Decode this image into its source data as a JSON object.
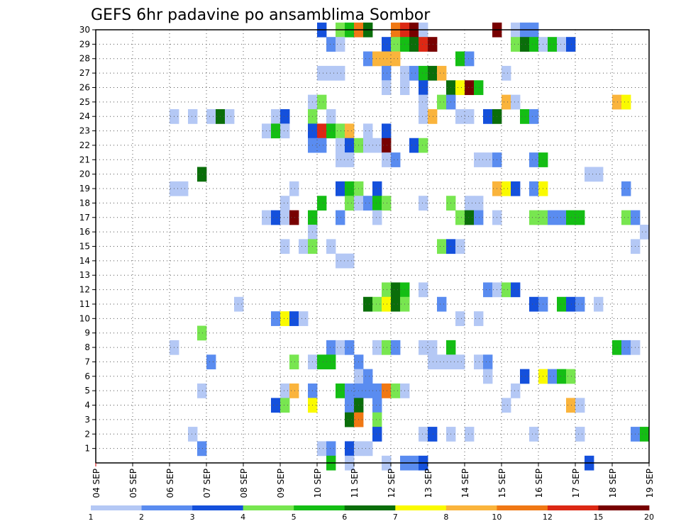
{
  "chart_data": {
    "type": "heatmap",
    "title": "GEFS 6hr padavine po ansamblima Sombor",
    "xlabel": "",
    "ylabel": "",
    "x_ticks": [
      "04 SEP",
      "05 SEP",
      "06 SEP",
      "07 SEP",
      "08 SEP",
      "09 SEP",
      "10 SEP",
      "11 SEP",
      "12 SEP",
      "13 SEP",
      "14 SEP",
      "15 SEP",
      "16 SEP",
      "17 SEP",
      "18 SEP",
      "19 SEP"
    ],
    "y_ticks": [
      "1",
      "2",
      "3",
      "4",
      "5",
      "6",
      "7",
      "8",
      "9",
      "10",
      "11",
      "12",
      "13",
      "14",
      "15",
      "16",
      "17",
      "18",
      "19",
      "20",
      "21",
      "22",
      "23",
      "24",
      "25",
      "26",
      "27",
      "28",
      "29",
      "30"
    ],
    "xlim": [
      0,
      15
    ],
    "ylim": [
      0,
      30
    ],
    "grid": true,
    "colorbar": {
      "levels": [
        "1",
        "2",
        "3",
        "4",
        "5",
        "6",
        "7",
        "8",
        "10",
        "12",
        "15",
        "20"
      ],
      "colors": [
        "#b4c8f5",
        "#5a8cf0",
        "#1450dc",
        "#78e650",
        "#14be14",
        "#0a6e0a",
        "#fafa00",
        "#fab43c",
        "#f07814",
        "#dc2814",
        "#780000"
      ]
    },
    "cells": [
      [
        6.0,
        30,
        2
      ],
      [
        6.5,
        30,
        3
      ],
      [
        6.75,
        30,
        4
      ],
      [
        7.0,
        30,
        8
      ],
      [
        7.25,
        30,
        5
      ],
      [
        8.0,
        30,
        8
      ],
      [
        8.25,
        30,
        9
      ],
      [
        8.5,
        30,
        10
      ],
      [
        8.75,
        30,
        0
      ],
      [
        10.75,
        30,
        10
      ],
      [
        11.25,
        30,
        0
      ],
      [
        11.5,
        30,
        1
      ],
      [
        11.75,
        30,
        1
      ],
      [
        6.25,
        29,
        1
      ],
      [
        6.5,
        29,
        0
      ],
      [
        7.75,
        29,
        2
      ],
      [
        8.0,
        29,
        3
      ],
      [
        8.25,
        29,
        4
      ],
      [
        8.5,
        29,
        5
      ],
      [
        8.75,
        29,
        9
      ],
      [
        9.0,
        29,
        10
      ],
      [
        11.25,
        29,
        3
      ],
      [
        11.5,
        29,
        5
      ],
      [
        11.75,
        29,
        4
      ],
      [
        12.0,
        29,
        0
      ],
      [
        12.25,
        29,
        4
      ],
      [
        12.5,
        29,
        0
      ],
      [
        12.75,
        29,
        2
      ],
      [
        7.25,
        28,
        1
      ],
      [
        7.5,
        28,
        7
      ],
      [
        7.75,
        28,
        7
      ],
      [
        8.0,
        28,
        7
      ],
      [
        9.75,
        28,
        4
      ],
      [
        10.0,
        28,
        1
      ],
      [
        6.0,
        27,
        0
      ],
      [
        6.25,
        27,
        0
      ],
      [
        6.5,
        27,
        0
      ],
      [
        7.75,
        27,
        1
      ],
      [
        8.25,
        27,
        0
      ],
      [
        8.5,
        27,
        1
      ],
      [
        8.75,
        27,
        4
      ],
      [
        9.0,
        27,
        5
      ],
      [
        9.25,
        27,
        7
      ],
      [
        11.0,
        27,
        0
      ],
      [
        7.75,
        26,
        0
      ],
      [
        8.25,
        26,
        0
      ],
      [
        8.75,
        26,
        2
      ],
      [
        9.5,
        26,
        5
      ],
      [
        9.75,
        26,
        6
      ],
      [
        10.0,
        26,
        10
      ],
      [
        10.25,
        26,
        4
      ],
      [
        5.75,
        25,
        0
      ],
      [
        6.0,
        25,
        3
      ],
      [
        8.75,
        25,
        0
      ],
      [
        9.25,
        25,
        3
      ],
      [
        9.5,
        25,
        1
      ],
      [
        11.0,
        25,
        7
      ],
      [
        11.25,
        25,
        0
      ],
      [
        14.0,
        25,
        7
      ],
      [
        14.25,
        25,
        6
      ],
      [
        2.0,
        24,
        0
      ],
      [
        2.5,
        24,
        0
      ],
      [
        3.0,
        24,
        0
      ],
      [
        3.25,
        24,
        5
      ],
      [
        3.5,
        24,
        0
      ],
      [
        4.75,
        24,
        0
      ],
      [
        5.0,
        24,
        2
      ],
      [
        5.75,
        24,
        3
      ],
      [
        6.25,
        24,
        0
      ],
      [
        8.75,
        24,
        0
      ],
      [
        9.0,
        24,
        7
      ],
      [
        9.75,
        24,
        0
      ],
      [
        10.0,
        24,
        0
      ],
      [
        10.5,
        24,
        2
      ],
      [
        10.75,
        24,
        5
      ],
      [
        11.5,
        24,
        4
      ],
      [
        11.75,
        24,
        1
      ],
      [
        4.5,
        23,
        0
      ],
      [
        4.75,
        23,
        4
      ],
      [
        5.0,
        23,
        0
      ],
      [
        5.75,
        23,
        2
      ],
      [
        6.0,
        23,
        9
      ],
      [
        6.25,
        23,
        4
      ],
      [
        6.5,
        23,
        3
      ],
      [
        6.75,
        23,
        7
      ],
      [
        7.25,
        23,
        0
      ],
      [
        7.75,
        23,
        2
      ],
      [
        5.75,
        22,
        1
      ],
      [
        6.0,
        22,
        1
      ],
      [
        6.5,
        22,
        0
      ],
      [
        6.75,
        22,
        2
      ],
      [
        7.0,
        22,
        3
      ],
      [
        7.25,
        22,
        0
      ],
      [
        7.5,
        22,
        0
      ],
      [
        7.75,
        22,
        10
      ],
      [
        8.5,
        22,
        2
      ],
      [
        8.75,
        22,
        3
      ],
      [
        6.5,
        21,
        0
      ],
      [
        6.75,
        21,
        0
      ],
      [
        7.75,
        21,
        0
      ],
      [
        8.0,
        21,
        1
      ],
      [
        10.25,
        21,
        0
      ],
      [
        10.5,
        21,
        0
      ],
      [
        10.75,
        21,
        1
      ],
      [
        11.75,
        21,
        1
      ],
      [
        12.0,
        21,
        4
      ],
      [
        2.75,
        20,
        5
      ],
      [
        13.25,
        20,
        0
      ],
      [
        13.5,
        20,
        0
      ],
      [
        2.0,
        19,
        0
      ],
      [
        2.25,
        19,
        0
      ],
      [
        5.25,
        19,
        0
      ],
      [
        6.5,
        19,
        2
      ],
      [
        6.75,
        19,
        4
      ],
      [
        7.0,
        19,
        3
      ],
      [
        7.5,
        19,
        2
      ],
      [
        10.75,
        19,
        7
      ],
      [
        11.0,
        19,
        6
      ],
      [
        11.25,
        19,
        2
      ],
      [
        11.75,
        19,
        1
      ],
      [
        12.0,
        19,
        6
      ],
      [
        14.25,
        19,
        1
      ],
      [
        5.0,
        18,
        0
      ],
      [
        6.0,
        18,
        4
      ],
      [
        6.75,
        18,
        3
      ],
      [
        7.0,
        18,
        0
      ],
      [
        7.25,
        18,
        1
      ],
      [
        7.5,
        18,
        4
      ],
      [
        7.75,
        18,
        3
      ],
      [
        8.75,
        18,
        0
      ],
      [
        9.5,
        18,
        3
      ],
      [
        10.0,
        18,
        0
      ],
      [
        10.25,
        18,
        0
      ],
      [
        4.5,
        17,
        0
      ],
      [
        4.75,
        17,
        2
      ],
      [
        5.0,
        17,
        0
      ],
      [
        5.25,
        17,
        10
      ],
      [
        5.75,
        17,
        4
      ],
      [
        6.5,
        17,
        1
      ],
      [
        7.5,
        17,
        0
      ],
      [
        9.75,
        17,
        3
      ],
      [
        10.0,
        17,
        5
      ],
      [
        10.25,
        17,
        1
      ],
      [
        10.75,
        17,
        0
      ],
      [
        11.75,
        17,
        3
      ],
      [
        12.0,
        17,
        3
      ],
      [
        12.25,
        17,
        1
      ],
      [
        12.5,
        17,
        1
      ],
      [
        12.75,
        17,
        4
      ],
      [
        13.0,
        17,
        4
      ],
      [
        14.25,
        17,
        3
      ],
      [
        14.5,
        17,
        1
      ],
      [
        5.75,
        16,
        0
      ],
      [
        14.75,
        16,
        0
      ],
      [
        5.0,
        15,
        0
      ],
      [
        5.5,
        15,
        0
      ],
      [
        5.75,
        15,
        3
      ],
      [
        6.25,
        15,
        0
      ],
      [
        9.25,
        15,
        3
      ],
      [
        9.5,
        15,
        2
      ],
      [
        9.75,
        15,
        0
      ],
      [
        14.5,
        15,
        0
      ],
      [
        6.5,
        14,
        0
      ],
      [
        6.75,
        14,
        0
      ],
      [
        7.75,
        12,
        3
      ],
      [
        8.0,
        12,
        5
      ],
      [
        8.25,
        12,
        4
      ],
      [
        8.75,
        12,
        0
      ],
      [
        10.5,
        12,
        1
      ],
      [
        10.75,
        12,
        0
      ],
      [
        11.0,
        12,
        3
      ],
      [
        11.25,
        12,
        2
      ],
      [
        3.75,
        11,
        0
      ],
      [
        7.25,
        11,
        5
      ],
      [
        7.5,
        11,
        3
      ],
      [
        7.75,
        11,
        6
      ],
      [
        8.0,
        11,
        5
      ],
      [
        8.25,
        11,
        3
      ],
      [
        9.25,
        11,
        1
      ],
      [
        11.75,
        11,
        2
      ],
      [
        12.0,
        11,
        1
      ],
      [
        12.5,
        11,
        4
      ],
      [
        12.75,
        11,
        2
      ],
      [
        13.0,
        11,
        1
      ],
      [
        13.5,
        11,
        0
      ],
      [
        4.75,
        10,
        1
      ],
      [
        5.0,
        10,
        6
      ],
      [
        5.25,
        10,
        2
      ],
      [
        5.5,
        10,
        0
      ],
      [
        9.75,
        10,
        0
      ],
      [
        10.25,
        10,
        0
      ],
      [
        2.75,
        9,
        3
      ],
      [
        2.0,
        8,
        0
      ],
      [
        6.25,
        8,
        1
      ],
      [
        6.5,
        8,
        0
      ],
      [
        6.75,
        8,
        1
      ],
      [
        7.5,
        8,
        0
      ],
      [
        7.75,
        8,
        3
      ],
      [
        8.0,
        8,
        1
      ],
      [
        8.75,
        8,
        0
      ],
      [
        9.0,
        8,
        0
      ],
      [
        9.5,
        8,
        4
      ],
      [
        14.0,
        8,
        4
      ],
      [
        14.25,
        8,
        1
      ],
      [
        14.5,
        8,
        0
      ],
      [
        3.0,
        7,
        1
      ],
      [
        5.25,
        7,
        3
      ],
      [
        5.75,
        7,
        0
      ],
      [
        6.0,
        7,
        4
      ],
      [
        6.25,
        7,
        4
      ],
      [
        7.0,
        7,
        1
      ],
      [
        9.0,
        7,
        0
      ],
      [
        9.25,
        7,
        0
      ],
      [
        9.5,
        7,
        0
      ],
      [
        9.75,
        7,
        0
      ],
      [
        10.25,
        7,
        0
      ],
      [
        10.5,
        7,
        1
      ],
      [
        7.0,
        6,
        0
      ],
      [
        7.25,
        6,
        1
      ],
      [
        10.5,
        6,
        0
      ],
      [
        11.5,
        6,
        2
      ],
      [
        12.0,
        6,
        6
      ],
      [
        12.25,
        6,
        1
      ],
      [
        12.5,
        6,
        4
      ],
      [
        12.75,
        6,
        3
      ],
      [
        2.75,
        5,
        0
      ],
      [
        5.0,
        5,
        0
      ],
      [
        5.25,
        5,
        7
      ],
      [
        5.75,
        5,
        1
      ],
      [
        6.5,
        5,
        4
      ],
      [
        6.75,
        5,
        1
      ],
      [
        7.0,
        5,
        1
      ],
      [
        7.25,
        5,
        1
      ],
      [
        7.5,
        5,
        1
      ],
      [
        7.75,
        5,
        8
      ],
      [
        8.0,
        5,
        3
      ],
      [
        8.25,
        5,
        0
      ],
      [
        11.25,
        5,
        0
      ],
      [
        4.75,
        4,
        2
      ],
      [
        5.0,
        4,
        3
      ],
      [
        5.75,
        4,
        6
      ],
      [
        6.75,
        4,
        1
      ],
      [
        7.0,
        4,
        5
      ],
      [
        7.5,
        4,
        1
      ],
      [
        11.0,
        4,
        0
      ],
      [
        12.75,
        4,
        7
      ],
      [
        13.0,
        4,
        0
      ],
      [
        6.75,
        3,
        5
      ],
      [
        7.0,
        3,
        8
      ],
      [
        7.5,
        3,
        3
      ],
      [
        2.5,
        2,
        0
      ],
      [
        7.5,
        2,
        2
      ],
      [
        8.75,
        2,
        0
      ],
      [
        9.0,
        2,
        2
      ],
      [
        9.5,
        2,
        0
      ],
      [
        10.0,
        2,
        0
      ],
      [
        11.75,
        2,
        0
      ],
      [
        13.0,
        2,
        0
      ],
      [
        14.5,
        2,
        1
      ],
      [
        14.75,
        2,
        4
      ],
      [
        2.75,
        1,
        1
      ],
      [
        6.0,
        1,
        0
      ],
      [
        6.25,
        1,
        1
      ],
      [
        6.75,
        1,
        2
      ],
      [
        7.0,
        1,
        0
      ],
      [
        7.25,
        1,
        0
      ],
      [
        6.25,
        0,
        4
      ],
      [
        6.75,
        0,
        0
      ],
      [
        7.75,
        0,
        0
      ],
      [
        8.25,
        0,
        1
      ],
      [
        8.5,
        0,
        1
      ],
      [
        8.75,
        0,
        2
      ],
      [
        13.25,
        0,
        2
      ]
    ]
  }
}
